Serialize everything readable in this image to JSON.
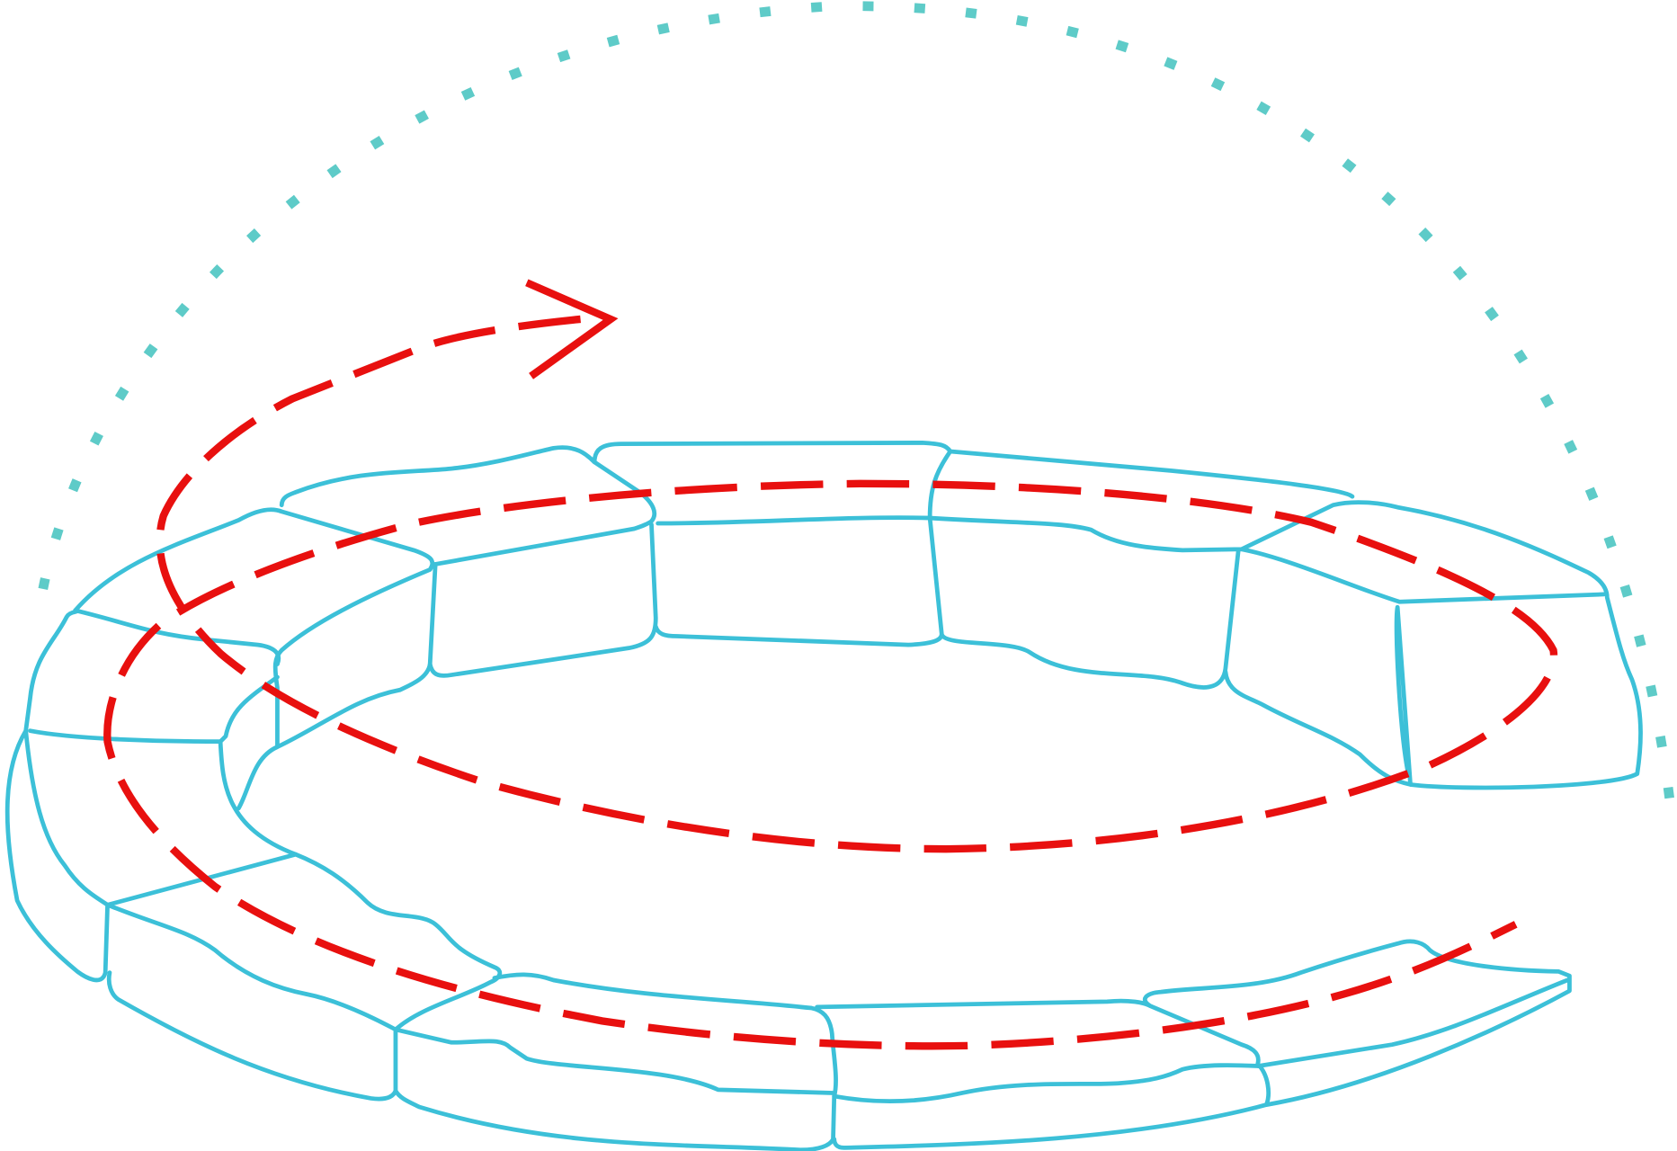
{
  "diagram": {
    "colors": {
      "ring_outline": "#3cc0d8",
      "rotation_spiral": "#e8100f",
      "dotted_arc": "#5ecbc8",
      "background": "#ffffff"
    },
    "icons": [
      "curved-ring-structure",
      "dashed-spiral-arrow",
      "dotted-arc"
    ]
  }
}
